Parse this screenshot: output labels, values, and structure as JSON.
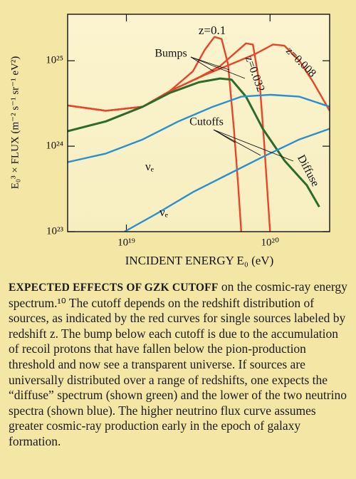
{
  "chart_data": {
    "type": "line",
    "xlabel": "INCIDENT ENERGY E₀ (eV)",
    "ylabel": "E₀³ × FLUX (m⁻² s⁻¹ sr⁻¹ eV²)",
    "xscale": "log",
    "yscale": "log",
    "grid": false,
    "xlim": [
      3.9e+18,
      2.6e+20
    ],
    "ylim": [
      1e+23,
      3.5e+25
    ],
    "xticks": [
      {
        "value": 1e+19,
        "label": "10¹⁹"
      },
      {
        "value": 1e+20,
        "label": "10²⁰"
      }
    ],
    "yticks": [
      {
        "value": 1e+23,
        "label": "10²³"
      },
      {
        "value": 1e+24,
        "label": "10²⁴"
      },
      {
        "value": 1e+25,
        "label": "10²⁵"
      }
    ],
    "series": [
      {
        "name": "z=0.1",
        "color": "#e8452a",
        "x": [
          3.9e+18,
          7.2e+18,
          1.3e+19,
          2e+19,
          2.9e+19,
          3.5e+19,
          4.1e+19,
          4.6e+19,
          5.1e+19,
          5.6e+19,
          6e+19,
          6.3e+19
        ],
        "values": [
          3e+24,
          2.6e+24,
          2.9e+24,
          4.4e+24,
          7.5e+24,
          1.33e+25,
          1.9e+25,
          1.8e+25,
          9.1e+24,
          1.6e+24,
          3.5e+23,
          1e+23
        ]
      },
      {
        "name": "z=0.032",
        "color": "#e8452a",
        "x": [
          3.9e+18,
          7.2e+18,
          1.3e+19,
          2e+19,
          3.2e+19,
          4.5e+19,
          5.6e+19,
          6.8e+19,
          7.6e+19,
          8.5e+19,
          9.1e+19,
          1e+20
        ],
        "values": [
          3e+24,
          2.6e+24,
          2.9e+24,
          4.4e+24,
          6.4e+24,
          8.7e+24,
          1.2e+25,
          1.6e+25,
          1.55e+25,
          5.1e+24,
          1.1e+24,
          1e+23
        ]
      },
      {
        "name": "z=0.008",
        "color": "#e8452a",
        "x": [
          3.9e+18,
          7.2e+18,
          1.3e+19,
          2e+19,
          3.5e+19,
          5.6e+19,
          7.9e+19,
          1.05e+20,
          1.26e+20,
          1.6e+20,
          2e+20,
          2.6e+20
        ],
        "values": [
          3e+24,
          2.6e+24,
          2.9e+24,
          4.4e+24,
          6.8e+24,
          9.4e+24,
          1.2e+25,
          1.55e+25,
          1.5e+25,
          1e+25,
          5.6e+24,
          2.6e+24
        ]
      },
      {
        "name": "Diffuse",
        "color": "#2e6b2a",
        "x": [
          3.9e+18,
          7.2e+18,
          1.3e+19,
          2e+19,
          3.2e+19,
          4.5e+19,
          5.4e+19,
          6.8e+19,
          8.9e+19,
          1.26e+20,
          1.8e+20,
          2.2e+20
        ],
        "values": [
          1.5e+24,
          1.95e+24,
          2.9e+24,
          4.2e+24,
          5.6e+24,
          6.2e+24,
          6e+24,
          3.8e+24,
          1.6e+24,
          6.8e+23,
          3.5e+23,
          1.95e+23
        ]
      },
      {
        "name": "νₑ",
        "color": "#2a8fd0",
        "x": [
          3.9e+18,
          7.2e+18,
          1.3e+19,
          2.3e+19,
          4e+19,
          6.3e+19,
          1e+20,
          1.6e+20,
          2.6e+20
        ],
        "values": [
          6.5e+23,
          8.2e+23,
          1.2e+24,
          1.95e+24,
          2.9e+24,
          3.8e+24,
          4e+24,
          3.8e+24,
          2.9e+24
        ]
      },
      {
        "name": "νₑ",
        "color": "#2a8fd0",
        "x": [
          9.7e+18,
          1.6e+19,
          2.9e+19,
          5e+19,
          8.9e+19,
          1.6e+20,
          2.6e+20
        ],
        "values": [
          1e+23,
          1.6e+23,
          2.9e+23,
          4.6e+23,
          7.5e+23,
          1.2e+24,
          1.6e+24
        ]
      }
    ],
    "annotations": [
      "Bumps",
      "Cutoffs"
    ],
    "caption_title": "EXPECTED EFFECTS OF GZK CUTOFF",
    "caption": "on the cosmic-ray energy spectrum.¹⁰ The cutoff depends on the redshift distribution of sources, as indicated by the red curves for single sources labeled by redshift z. The bump below each cutoff is due to the accumulation of recoil protons that have fallen below the pion-production threshold and now see a transparent universe. If sources are universally distributed over a range of redshifts, one expects the “diffuse” spectrum (shown green) and the lower of the two neutrino spectra (shown blue). The higher neutrino flux curve assumes greater cosmic-ray production early in the epoch of galaxy formation."
  }
}
